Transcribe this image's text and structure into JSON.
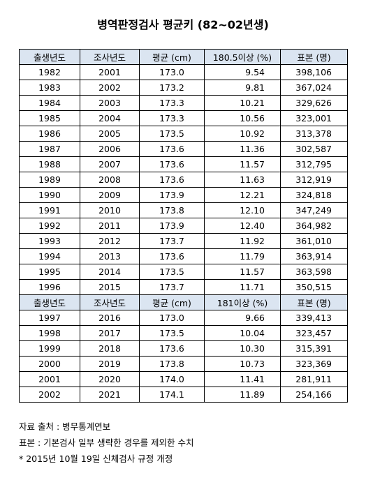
{
  "title": "병역판정검사 평균키 (82~02년생)",
  "table": {
    "sections": [
      {
        "header": [
          "출생년도",
          "조사년도",
          "평균 (cm)",
          "180.5이상 (%)",
          "표본 (명)"
        ],
        "rows": [
          [
            "1982",
            "2001",
            "173.0",
            "9.54",
            "398,106"
          ],
          [
            "1983",
            "2002",
            "173.2",
            "9.81",
            "367,024"
          ],
          [
            "1984",
            "2003",
            "173.3",
            "10.21",
            "329,626"
          ],
          [
            "1985",
            "2004",
            "173.3",
            "10.56",
            "323,001"
          ],
          [
            "1986",
            "2005",
            "173.5",
            "10.92",
            "313,378"
          ],
          [
            "1987",
            "2006",
            "173.6",
            "11.36",
            "302,587"
          ],
          [
            "1988",
            "2007",
            "173.6",
            "11.57",
            "312,795"
          ],
          [
            "1989",
            "2008",
            "173.6",
            "11.63",
            "312,919"
          ],
          [
            "1990",
            "2009",
            "173.9",
            "12.21",
            "324,818"
          ],
          [
            "1991",
            "2010",
            "173.8",
            "12.10",
            "347,249"
          ],
          [
            "1992",
            "2011",
            "173.9",
            "12.40",
            "364,982"
          ],
          [
            "1993",
            "2012",
            "173.7",
            "11.92",
            "361,010"
          ],
          [
            "1994",
            "2013",
            "173.6",
            "11.79",
            "363,914"
          ],
          [
            "1995",
            "2014",
            "173.5",
            "11.57",
            "363,598"
          ],
          [
            "1996",
            "2015",
            "173.7",
            "11.71",
            "350,515"
          ]
        ]
      },
      {
        "header": [
          "출생년도",
          "조사년도",
          "평균 (cm)",
          "181이상 (%)",
          "표본 (명)"
        ],
        "rows": [
          [
            "1997",
            "2016",
            "173.0",
            "9.66",
            "339,413"
          ],
          [
            "1998",
            "2017",
            "173.5",
            "10.04",
            "323,457"
          ],
          [
            "1999",
            "2018",
            "173.6",
            "10.30",
            "315,391"
          ],
          [
            "2000",
            "2019",
            "173.8",
            "10.73",
            "323,369"
          ],
          [
            "2001",
            "2020",
            "174.0",
            "11.41",
            "281,911"
          ],
          [
            "2002",
            "2021",
            "174.1",
            "11.89",
            "254,166"
          ]
        ]
      }
    ]
  },
  "notes": [
    "자료 출처 : 병무통계연보",
    "표본 : 기본검사 일부 생략한 경우를 제외한 수치",
    "* 2015년 10월 19일 신체검사 규정 개정"
  ]
}
